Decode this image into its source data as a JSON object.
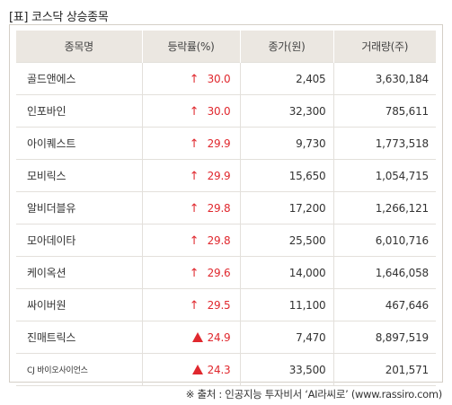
{
  "title": "[표] 코스닥 상승종목",
  "columns": [
    "종목명",
    "등락률(%)",
    "종가(원)",
    "거래량(주)"
  ],
  "rows": [
    {
      "name": "골드앤에스",
      "rate": "30.0",
      "icon": "arrow-up",
      "price": "2,405",
      "volume": "3,630,184"
    },
    {
      "name": "인포바인",
      "rate": "30.0",
      "icon": "arrow-up",
      "price": "32,300",
      "volume": "785,611"
    },
    {
      "name": "아이퀘스트",
      "rate": "29.9",
      "icon": "arrow-up",
      "price": "9,730",
      "volume": "1,773,518"
    },
    {
      "name": "모비릭스",
      "rate": "29.9",
      "icon": "arrow-up",
      "price": "15,650",
      "volume": "1,054,715"
    },
    {
      "name": "알비더블유",
      "rate": "29.8",
      "icon": "arrow-up",
      "price": "17,200",
      "volume": "1,266,121"
    },
    {
      "name": "모아데이타",
      "rate": "29.8",
      "icon": "arrow-up",
      "price": "25,500",
      "volume": "6,010,716"
    },
    {
      "name": "케이옥션",
      "rate": "29.6",
      "icon": "arrow-up",
      "price": "14,000",
      "volume": "1,646,058"
    },
    {
      "name": "싸이버원",
      "rate": "29.5",
      "icon": "arrow-up",
      "price": "11,100",
      "volume": "467,646"
    },
    {
      "name": "진매트릭스",
      "rate": "24.9",
      "icon": "triangle-up",
      "price": "7,470",
      "volume": "8,897,519"
    },
    {
      "name": "CJ 바이오사이언스",
      "rate": "24.3",
      "icon": "triangle-up",
      "price": "33,500",
      "volume": "201,571"
    }
  ],
  "source": "※ 출처 : 인공지능 투자비서 ‘AI라씨로’ (www.rassiro.com)",
  "colors": {
    "rise": "#e0282e",
    "header_bg": "#ebe7e1",
    "border": "#e3e0db"
  }
}
